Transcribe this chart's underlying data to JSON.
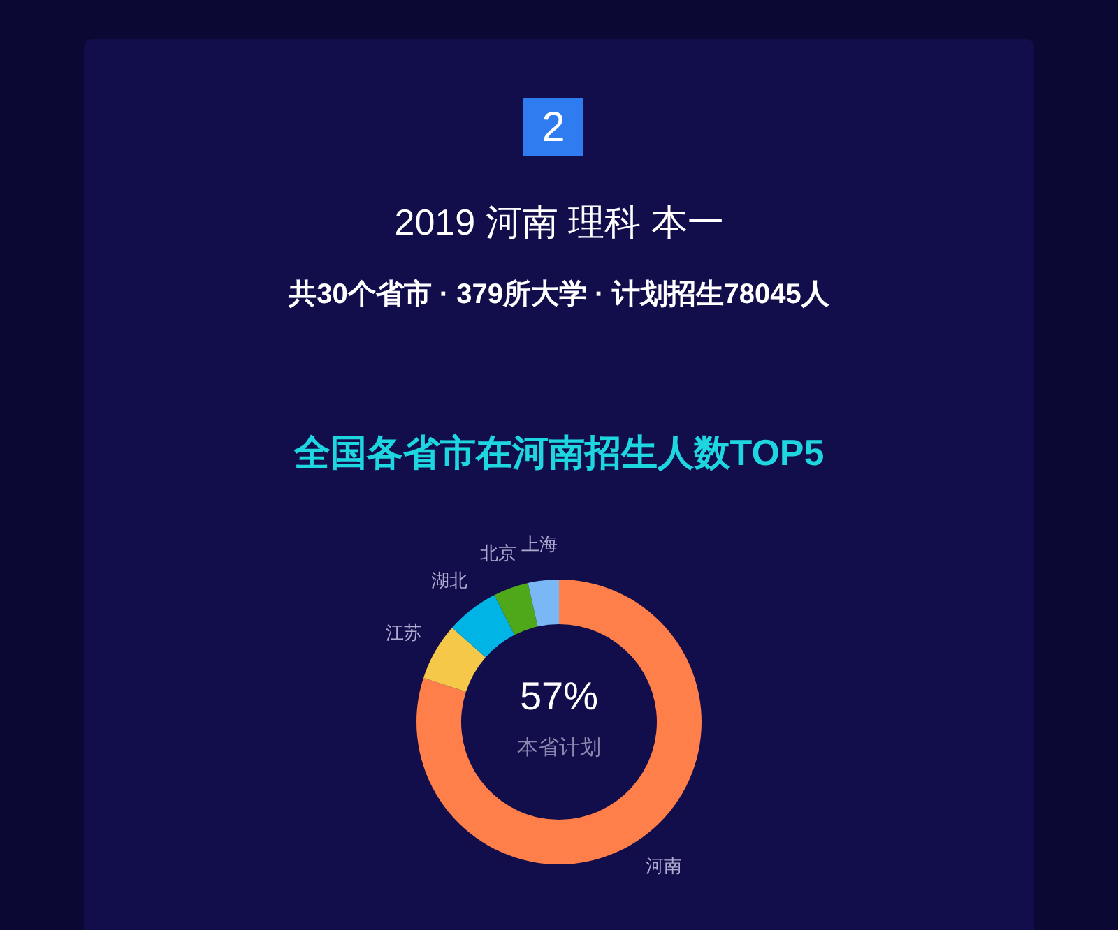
{
  "chart_data": {
    "type": "donut",
    "title": "2019 河南 理科 本一",
    "subtitle": "共30个省市 · 379所大学 · 计划招生78045人",
    "annotations": [
      "2",
      "全国各省市在河南招生人数TOP5",
      "57%",
      "本省计划"
    ],
    "categories": [
      "河南",
      "江苏",
      "湖北",
      "北京",
      "上海"
    ],
    "values": [
      80,
      6.5,
      6,
      4,
      3.5
    ],
    "colors": [
      "#ff7f4a",
      "#f5c84a",
      "#00b4e6",
      "#4ea81a",
      "#7ab8f5"
    ]
  }
}
